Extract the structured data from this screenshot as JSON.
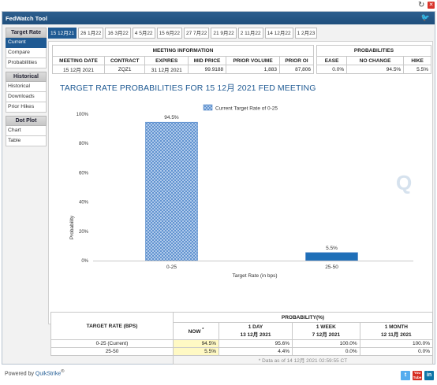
{
  "window": {
    "refresh_icon": "refresh-icon",
    "close_icon": "close-icon"
  },
  "app": {
    "title": "FedWatch Tool",
    "social_icon": "twitter-icon"
  },
  "sidebar": {
    "groups": [
      {
        "heading": "Target Rate",
        "items": [
          "Current",
          "Compare",
          "Probabilities"
        ],
        "active": "Current"
      },
      {
        "heading": "Historical",
        "items": [
          "Historical",
          "Downloads",
          "Prior Hikes"
        ]
      },
      {
        "heading": "Dot Plot",
        "items": [
          "Chart",
          "Table"
        ]
      }
    ]
  },
  "tabs": [
    "15 12月21",
    "26 1月22",
    "16 3月22",
    "4 5月22",
    "15 6月22",
    "27 7月22",
    "21 9月22",
    "2 11月22",
    "14 12月22",
    "1 2月23"
  ],
  "active_tab": "15 12月21",
  "meeting_info": {
    "heading": "MEETING INFORMATION",
    "columns": [
      "MEETING DATE",
      "CONTRACT",
      "EXPIRES",
      "MID PRICE",
      "PRIOR VOLUME",
      "PRIOR OI"
    ],
    "row": [
      "15 12月 2021",
      "ZQZ1",
      "31 12月 2021",
      "99.9188",
      "1,883",
      "87,806"
    ]
  },
  "probabilities": {
    "heading": "PROBABILITIES",
    "columns": [
      "EASE",
      "NO CHANGE",
      "HIKE"
    ],
    "row": [
      "0.0%",
      "94.5%",
      "5.5%"
    ]
  },
  "chart_title": "TARGET RATE PROBABILITIES FOR 15 12月 2021 FED MEETING",
  "chart_data": {
    "type": "bar",
    "title": "TARGET RATE PROBABILITIES FOR 15 12月 2021 FED MEETING",
    "categories": [
      "0-25",
      "25-50"
    ],
    "series": [
      {
        "name": "Current Target Rate of 0-25",
        "values": [
          94.5,
          5.5
        ]
      }
    ],
    "value_labels": [
      "94.5%",
      "5.5%"
    ],
    "xlabel": "Target Rate (in bps)",
    "ylabel": "Probability",
    "ylim": [
      0,
      100
    ],
    "yticks": [
      "0%",
      "20%",
      "40%",
      "60%",
      "80%",
      "100%"
    ],
    "legend": "top-center",
    "grid": false,
    "colors": {
      "bar_0": "#5a8fd0",
      "bar_1": "#1f6fb8"
    }
  },
  "watermark": "Q",
  "bottom_table": {
    "title": "TARGET RATE (BPS)",
    "prob_heading": "PROBABILITY(%)",
    "columns": [
      {
        "label": "NOW",
        "sup": "*"
      },
      {
        "label": "1 DAY",
        "date": "13 12月 2021"
      },
      {
        "label": "1 WEEK",
        "date": "7 12月 2021"
      },
      {
        "label": "1 MONTH",
        "date": "12 11月 2021"
      }
    ],
    "rows": [
      {
        "rate": "0-25 (Current)",
        "values": [
          "94.5%",
          "95.6%",
          "100.0%",
          "100.0%"
        ]
      },
      {
        "rate": "25-50",
        "values": [
          "5.5%",
          "4.4%",
          "0.0%",
          "0.0%"
        ]
      }
    ],
    "footnote": "* Data as of 14 12月 2021 02:59:55 CT"
  },
  "footer": {
    "powered_by": "Powered by",
    "brand": "QuikStrike",
    "brand_mark": "®",
    "social": [
      "twitter-icon",
      "youtube-icon",
      "linkedin-icon"
    ],
    "youtube_text": "You Tube",
    "linkedin_text": "in"
  }
}
